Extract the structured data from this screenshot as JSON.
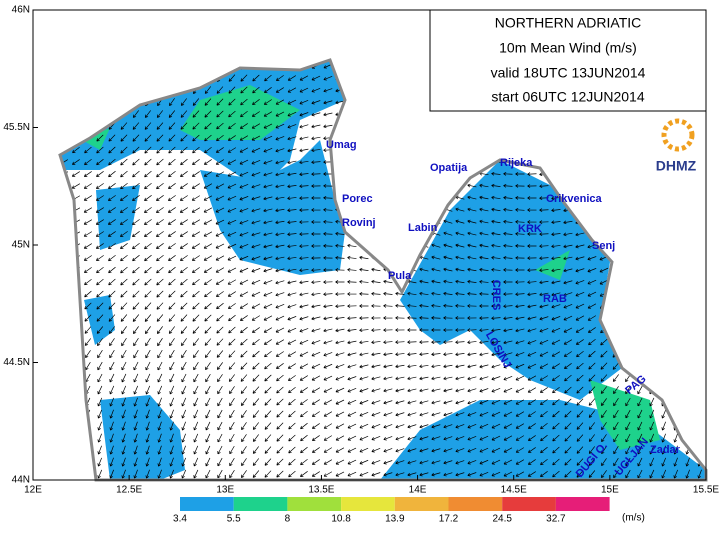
{
  "header": {
    "lines": [
      "NORTHERN ADRIATIC",
      "10m Mean Wind (m/s)",
      "valid 18UTC 13JUN2014",
      "start 06UTC 12JUN2014"
    ],
    "logo": "DHMZ"
  },
  "axes": {
    "x_ticks": [
      {
        "value": 12,
        "label": "12E"
      },
      {
        "value": 12.5,
        "label": "12.5E"
      },
      {
        "value": 13,
        "label": "13E"
      },
      {
        "value": 13.5,
        "label": "13.5E"
      },
      {
        "value": 14,
        "label": "14E"
      },
      {
        "value": 14.5,
        "label": "14.5E"
      },
      {
        "value": 15,
        "label": "15E"
      },
      {
        "value": 15.5,
        "label": "15.5E"
      }
    ],
    "y_ticks": [
      {
        "value": 44,
        "label": "44N"
      },
      {
        "value": 44.5,
        "label": "44.5N"
      },
      {
        "value": 45,
        "label": "45N"
      },
      {
        "value": 45.5,
        "label": "45.5N"
      },
      {
        "value": 46,
        "label": "46N"
      }
    ]
  },
  "places": [
    "Umag",
    "Porec",
    "Rovinj",
    "Pula",
    "Labin",
    "Opatija",
    "Rijeka",
    "Crikvenica",
    "KRK",
    "Senj",
    "CRES",
    "RAB",
    "LOSINJ",
    "PAG",
    "Zadar",
    "UGLJAN",
    "DUGI O."
  ],
  "legend": {
    "levels": [
      3.4,
      5.5,
      8,
      10.8,
      13.9,
      17.2,
      24.5,
      32.7
    ],
    "colors": [
      "#1ea0e6",
      "#1ed28c",
      "#a0e03c",
      "#e6e63c",
      "#f0b43c",
      "#f08c32",
      "#e63c3c",
      "#e61e78"
    ],
    "unit": "(m/s)"
  }
}
